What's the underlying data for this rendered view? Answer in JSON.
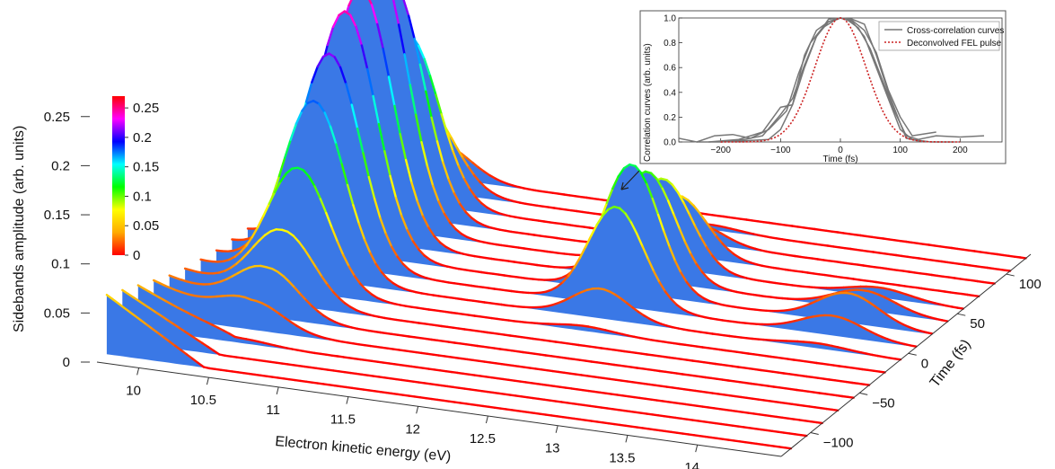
{
  "chart_data": [
    {
      "type": "surface-3d-waterfall",
      "xlabel": "Electron kinetic energy (eV)",
      "ylabel": "Sidebands amplitude (arb. units)",
      "zlabel": "Time (fs)",
      "x_ticks": [
        "10",
        "10.5",
        "11",
        "11.5",
        "12",
        "12.5",
        "13",
        "13.5",
        "14"
      ],
      "xlim": [
        9.7,
        14.6
      ],
      "y_ticks": [
        "0",
        "0.05",
        "0.1",
        "0.15",
        "0.2",
        "0.25"
      ],
      "ylim": [
        0,
        0.27
      ],
      "z_ticks": [
        "−100",
        "−50",
        "0",
        "50",
        "100"
      ],
      "zlim": [
        -130,
        125
      ],
      "colorbar": {
        "ticks": [
          "0.25",
          "0.2",
          "0.15",
          "0.1",
          "0.05",
          "0"
        ],
        "range": [
          0,
          0.27
        ],
        "colors": [
          "#ff0000",
          "#ffaa00",
          "#ffff00",
          "#00ff00",
          "#00ffff",
          "#0000ff",
          "#ff00ff",
          "#ff0000"
        ]
      },
      "fill_color": "#3a78e6",
      "sideband_peaks_eV": [
        10.4,
        12.45,
        14.0
      ],
      "time_slices_fs": [
        -120,
        -104,
        -88,
        -72,
        -56,
        -40,
        -24,
        -8,
        8,
        24,
        40,
        56,
        72,
        88,
        104,
        120
      ],
      "slice_peak_amplitudes": {
        "sideband_10_4eV": [
          0.0,
          0.0,
          0.005,
          0.03,
          0.05,
          0.075,
          0.125,
          0.18,
          0.215,
          0.245,
          0.255,
          0.27,
          0.235,
          0.17,
          0.085,
          0.035
        ],
        "sideband_12_45eV": [
          0.0,
          0.0,
          0.0,
          0.0,
          0.0,
          0.0,
          0.005,
          0.03,
          0.1,
          0.13,
          0.11,
          0.09,
          0.06,
          0.02,
          0.005,
          0.0
        ],
        "sideband_14_0eV": [
          0.0,
          0.0,
          0.0,
          0.0,
          0.0,
          0.0,
          0.0,
          0.005,
          0.02,
          0.03,
          0.02,
          0.01,
          0.0,
          0.0,
          0.0,
          0.0
        ]
      },
      "baseline_amplitudes": [
        0.06,
        0.052,
        0.044,
        0.036,
        0.028,
        0.022,
        0.018,
        0.014,
        0.012,
        0.01,
        0.008,
        0.007,
        0.006,
        0.005,
        0.004,
        0.003
      ]
    },
    {
      "type": "line",
      "xlabel": "Time (fs)",
      "ylabel": "Correlation curves (arb. units)",
      "xlim": [
        -270,
        270
      ],
      "ylim": [
        0,
        1.0
      ],
      "x_ticks": [
        "−200",
        "−100",
        "0",
        "100",
        "200"
      ],
      "y_ticks": [
        "0.0",
        "0.2",
        "0.4",
        "0.6",
        "0.8",
        "1.0"
      ],
      "legend": [
        "Cross-correlation curves",
        "Deconvolved FEL pulse"
      ],
      "legend_position": "top-right",
      "series": [
        {
          "name": "Cross-correlation curves",
          "color": "#777777",
          "x": [
            -270,
            -240,
            -210,
            -180,
            -150,
            -120,
            -90,
            -70,
            -50,
            -30,
            -10,
            0,
            10,
            30,
            50,
            70,
            90,
            110,
            130,
            160,
            200,
            240
          ],
          "y": [
            0.03,
            0.0,
            0.05,
            0.06,
            0.03,
            0.1,
            0.25,
            0.55,
            0.8,
            0.92,
            0.98,
            1.0,
            0.99,
            0.92,
            0.75,
            0.5,
            0.25,
            0.05,
            0.02,
            0.05,
            0.04,
            0.05
          ]
        },
        {
          "name": "",
          "color": "#777777",
          "x": [
            -240,
            -200,
            -160,
            -130,
            -100,
            -80,
            -60,
            -40,
            -20,
            0,
            20,
            40,
            60,
            80,
            100,
            120,
            150,
            190
          ],
          "y": [
            0.0,
            0.0,
            0.02,
            0.05,
            0.22,
            0.35,
            0.62,
            0.85,
            0.97,
            1.0,
            0.97,
            0.85,
            0.6,
            0.35,
            0.1,
            0.02,
            0.0,
            0.0
          ]
        },
        {
          "name": "",
          "color": "#777777",
          "x": [
            -220,
            -170,
            -130,
            -100,
            -80,
            -60,
            -40,
            -20,
            0,
            20,
            40,
            60,
            80,
            100,
            120,
            160
          ],
          "y": [
            0.0,
            0.02,
            0.08,
            0.28,
            0.3,
            0.7,
            0.9,
            0.97,
            1.0,
            0.98,
            0.9,
            0.72,
            0.42,
            0.2,
            0.05,
            0.08
          ]
        },
        {
          "name": "",
          "color": "#777777",
          "x": [
            -200,
            -160,
            -120,
            -100,
            -80,
            -60,
            -40,
            -20,
            0,
            20,
            40,
            60,
            80,
            100,
            110,
            140
          ],
          "y": [
            0.0,
            0.01,
            0.02,
            0.1,
            0.3,
            0.6,
            0.85,
            0.99,
            1.0,
            0.99,
            0.95,
            0.7,
            0.4,
            0.15,
            0.03,
            0.0
          ]
        },
        {
          "name": "Deconvolved FEL pulse",
          "color": "#cc2222",
          "dashed": true,
          "gaussian_fwhm_fs": 100
        }
      ]
    }
  ]
}
